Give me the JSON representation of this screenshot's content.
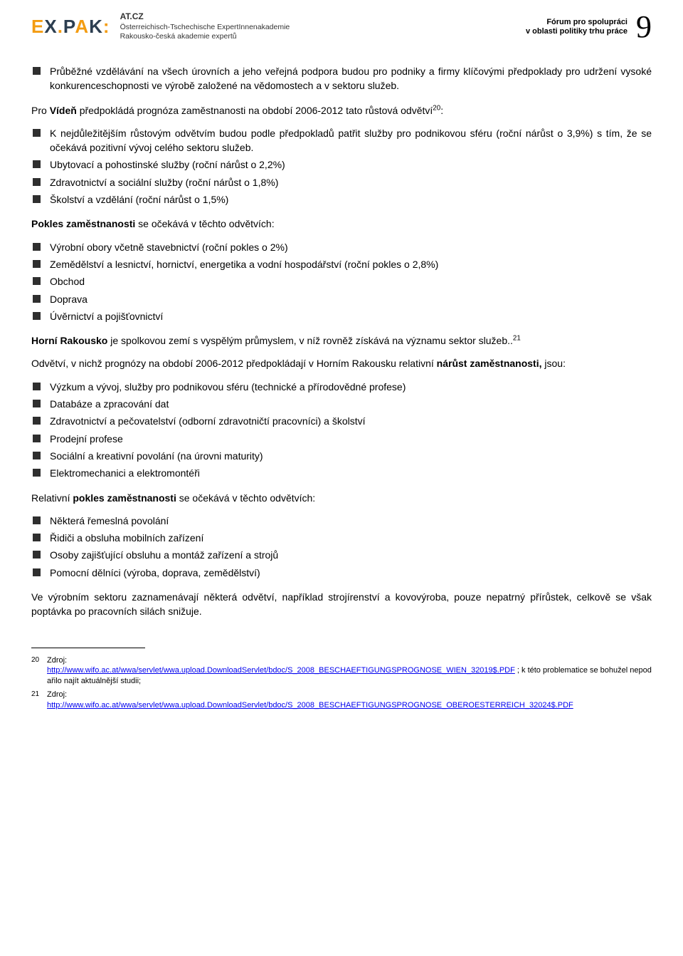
{
  "header": {
    "logo_parts": {
      "e": "E",
      "x": "X",
      "dot": ".",
      "p": "P",
      "a": "A",
      "k": "K",
      "colon": ":"
    },
    "sub_line1": "AT.CZ",
    "sub_line2": "Österreichisch-Tschechische ExpertInnenakademie",
    "sub_line3": "Rakousko-česká akademie expertů",
    "forum_line1": "Fórum pro spolupráci",
    "forum_line2": "v oblasti politiky trhu práce",
    "page_number": "9"
  },
  "body": {
    "bullets_intro": [
      "Průběžné vzdělávání na všech úrovních a jeho veřejná podpora budou pro podniky a firmy klíčovými předpoklady pro udržení vysoké konkurenceschopnosti ve výrobě založené na vědomostech a v sektoru služeb."
    ],
    "p_viden_pre": "Pro ",
    "p_viden_bold": "Vídeň",
    "p_viden_post": " předpokládá prognóza zaměstnanosti na období 2006-2012 tato růstová odvětví",
    "sup20": "20",
    "colon": ":",
    "bullets_viden": [
      "K nejdůležitějším růstovým odvětvím budou podle předpokladů patřit služby pro podnikovou sféru (roční nárůst o 3,9%) s tím, že se očekává pozitivní vývoj celého sektoru služeb.",
      "Ubytovací a pohostinské služby (roční nárůst o 2,2%)",
      "Zdravotnictví a sociální služby (roční nárůst o 1,8%)",
      "Školství a vzdělání (roční nárůst o 1,5%)"
    ],
    "p_pokles_pre": "Pokles zaměstnanosti",
    "p_pokles_post": " se očekává v těchto odvětvích:",
    "bullets_pokles": [
      "Výrobní obory včetně stavebnictví (roční pokles o 2%)",
      "Zemědělství a lesnictví, hornictví, energetika a vodní hospodářství (roční pokles o 2,8%)",
      "Obchod",
      "Doprava",
      "Úvěrnictví a pojišťovnictví"
    ],
    "p_horni_bold": "Horní Rakousko",
    "p_horni_post": " je spolkovou zemí s vyspělým průmyslem, v níž rovněž získává na významu sektor služeb..",
    "sup21": "21",
    "p_odvetvi": "Odvětví, v nichž prognózy na období 2006-2012 předpokládají v Horním Rakousku relativní ",
    "p_odvetvi_bold": "nárůst zaměstnanosti,",
    "p_odvetvi_post": " jsou:",
    "bullets_horni_growth": [
      "Výzkum a vývoj, služby pro podnikovou sféru (technické a přírodovědné profese)",
      "Databáze a zpracování dat",
      "Zdravotnictví a pečovatelství (odborní zdravotničtí pracovníci) a školství",
      "Prodejní profese",
      "Sociální a kreativní povolání (na úrovni maturity)",
      "Elektromechanici a elektromontéři"
    ],
    "p_rel_pre": "Relativní ",
    "p_rel_bold": "pokles zaměstnanosti",
    "p_rel_post": " se očekává v těchto odvětvích:",
    "bullets_horni_decline": [
      "Některá řemeslná povolání",
      "Řidiči a obsluha mobilních zařízení",
      "Osoby zajišťující obsluhu a montáž zařízení a strojů",
      "Pomocní dělníci (výroba, doprava, zemědělství)"
    ],
    "p_final": "Ve výrobním sektoru zaznamenávají některá odvětví, například strojírenství a kovovýroba, pouze nepatrný přírůstek, celkově se však poptávka po pracovních silách snižuje."
  },
  "footnotes": {
    "fn20_num": "20",
    "fn20_label": "Zdroj:",
    "fn20_link": "http://www.wifo.ac.at/wwa/servlet/wwa.upload.DownloadServlet/bdoc/S_2008_BESCHAEFTIGUNGSPROGNOSE_WIEN_32019$.PDF",
    "fn20_post": " ; k této problematice se bohužel nepodařilo najít aktuálnější studii;",
    "fn21_num": "21",
    "fn21_label": "Zdroj:",
    "fn21_link": "http://www.wifo.ac.at/wwa/servlet/wwa.upload.DownloadServlet/bdoc/S_2008_BESCHAEFTIGUNGSPROGNOSE_OBEROESTERREICH_32024$.PDF"
  },
  "colors": {
    "bullet_fill": "#2f2f2f",
    "link": "#0000ee",
    "logo_orange": "#f39c12",
    "logo_navy": "#2c3e50",
    "text": "#000000",
    "background": "#ffffff"
  }
}
